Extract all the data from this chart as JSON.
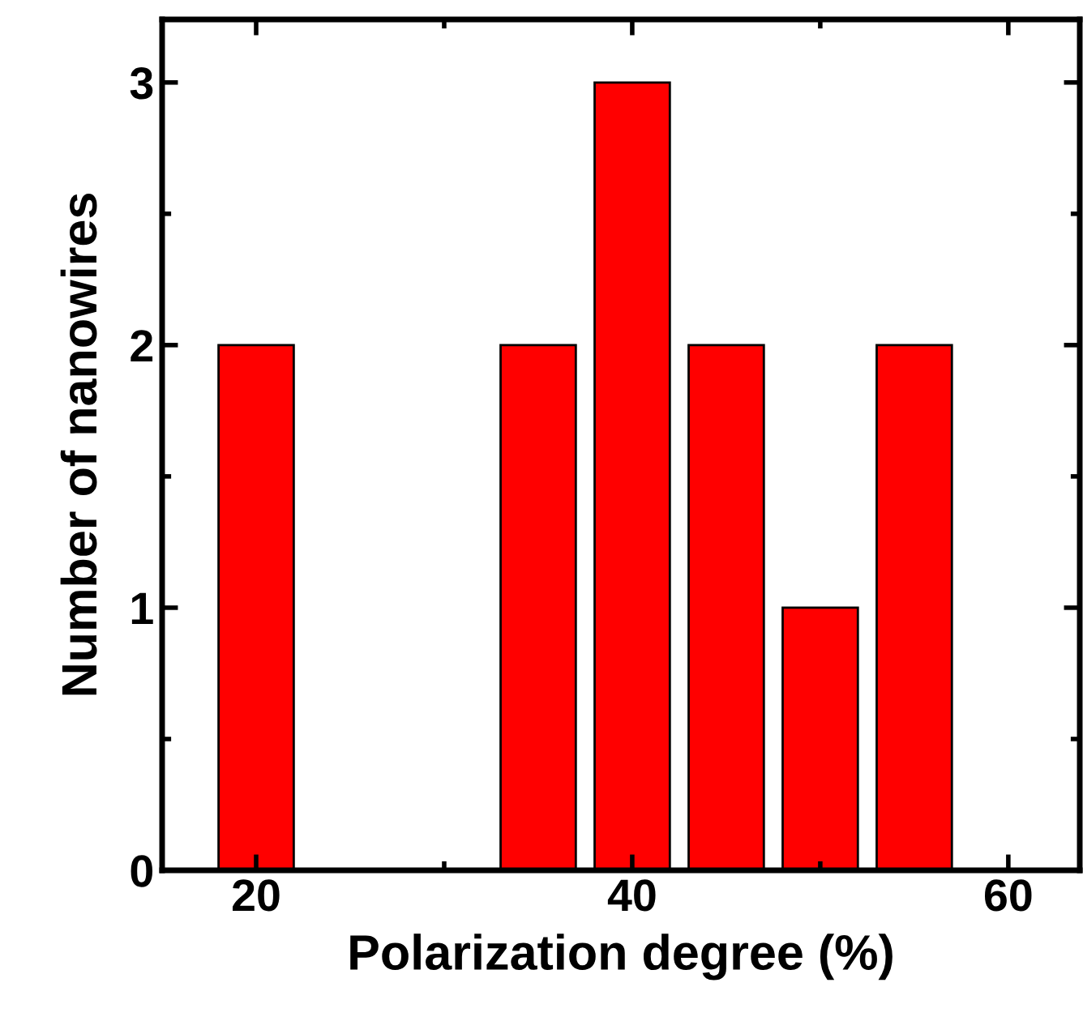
{
  "chart_data": {
    "type": "bar",
    "xlabel": "Polarization degree (%)",
    "ylabel": "Number of nanowires",
    "x": [
      20,
      35,
      40,
      45,
      50,
      55
    ],
    "series": [
      {
        "color": "#ff0000",
        "values": [
          2,
          2,
          3,
          2,
          1,
          2
        ]
      }
    ],
    "xlim": [
      15,
      63.8
    ],
    "xticks": [
      20,
      40,
      60
    ],
    "ylim": [
      0,
      3.24
    ],
    "yticks": [
      0,
      1,
      2,
      3
    ],
    "grid": false,
    "legend": false
  }
}
